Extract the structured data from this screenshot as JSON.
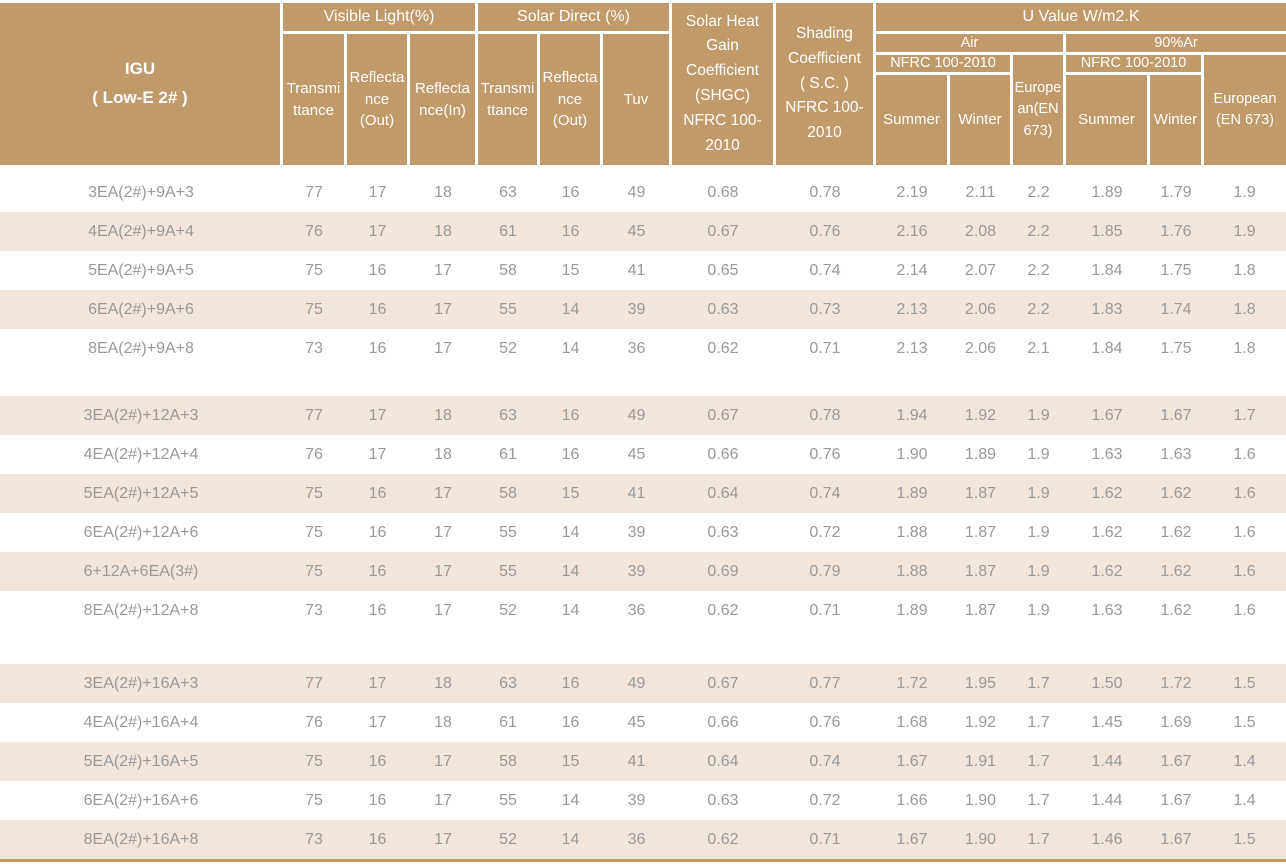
{
  "colors": {
    "header_bg": "#c19a6b",
    "shaded_row_bg": "#f2e5dc",
    "data_text": "#97999b",
    "header_text": "#ffffff",
    "bottom_border": "#c1996a"
  },
  "header": {
    "igu": "IGU\n( Low-E 2# )",
    "visible_light": "Visible Light(%)",
    "solar_direct": "Solar Direct (%)",
    "vl_transmittance": "Transmi\nttance",
    "vl_reflectance_out": "Reflecta\nnce\n(Out)",
    "vl_reflectance_in": "Reflecta\nnce(In)",
    "sd_transmittance": "Transmi\nttance",
    "sd_reflectance_out": "Reflecta\nnce\n(Out)",
    "tuv": "Tuv",
    "shgc": "Solar Heat\nGain\nCoefficient\n(SHGC)\nNFRC 100-\n2010",
    "shading_coefficient": "Shading\nCoefficient\n( S.C. )\nNFRC 100-\n2010",
    "u_value": "U Value W/m2.K",
    "air": "Air",
    "argon": "90%Ar",
    "nfrc_air": "NFRC 100-2010",
    "nfrc_ar": "NFRC 100-2010",
    "summer_air": "Summer",
    "winter_air": "Winter",
    "european_air": "Europe\nan(EN\n673)",
    "summer_ar": "Summer",
    "winter_ar": "Winter",
    "european_ar": "European\n(EN 673)"
  },
  "table": {
    "row_groups": [
      {
        "rows": [
          {
            "label": "3EA(2#)+9A+3",
            "values": [
              "77",
              "17",
              "18",
              "63",
              "16",
              "49",
              "0.68",
              "0.78",
              "2.19",
              "2.11",
              "2.2",
              "1.89",
              "1.79",
              "1.9"
            ]
          },
          {
            "label": "4EA(2#)+9A+4",
            "values": [
              "76",
              "17",
              "18",
              "61",
              "16",
              "45",
              "0.67",
              "0.76",
              "2.16",
              "2.08",
              "2.2",
              "1.85",
              "1.76",
              "1.9"
            ]
          },
          {
            "label": "5EA(2#)+9A+5",
            "values": [
              "75",
              "16",
              "17",
              "58",
              "15",
              "41",
              "0.65",
              "0.74",
              "2.14",
              "2.07",
              "2.2",
              "1.84",
              "1.75",
              "1.8"
            ]
          },
          {
            "label": "6EA(2#)+9A+6",
            "values": [
              "75",
              "16",
              "17",
              "55",
              "14",
              "39",
              "0.63",
              "0.73",
              "2.13",
              "2.06",
              "2.2",
              "1.83",
              "1.74",
              "1.8"
            ]
          },
          {
            "label": "8EA(2#)+9A+8",
            "values": [
              "73",
              "16",
              "17",
              "52",
              "14",
              "36",
              "0.62",
              "0.71",
              "2.13",
              "2.06",
              "2.1",
              "1.84",
              "1.75",
              "1.8"
            ]
          }
        ]
      },
      {
        "rows": [
          {
            "label": "3EA(2#)+12A+3",
            "values": [
              "77",
              "17",
              "18",
              "63",
              "16",
              "49",
              "0.67",
              "0.78",
              "1.94",
              "1.92",
              "1.9",
              "1.67",
              "1.67",
              "1.7"
            ]
          },
          {
            "label": "4EA(2#)+12A+4",
            "values": [
              "76",
              "17",
              "18",
              "61",
              "16",
              "45",
              "0.66",
              "0.76",
              "1.90",
              "1.89",
              "1.9",
              "1.63",
              "1.63",
              "1.6"
            ]
          },
          {
            "label": "5EA(2#)+12A+5",
            "values": [
              "75",
              "16",
              "17",
              "58",
              "15",
              "41",
              "0.64",
              "0.74",
              "1.89",
              "1.87",
              "1.9",
              "1.62",
              "1.62",
              "1.6"
            ]
          },
          {
            "label": "6EA(2#)+12A+6",
            "values": [
              "75",
              "16",
              "17",
              "55",
              "14",
              "39",
              "0.63",
              "0.72",
              "1.88",
              "1.87",
              "1.9",
              "1.62",
              "1.62",
              "1.6"
            ]
          },
          {
            "label": "6+12A+6EA(3#)",
            "values": [
              "75",
              "16",
              "17",
              "55",
              "14",
              "39",
              "0.69",
              "0.79",
              "1.88",
              "1.87",
              "1.9",
              "1.62",
              "1.62",
              "1.6"
            ]
          },
          {
            "label": "8EA(2#)+12A+8",
            "values": [
              "73",
              "16",
              "17",
              "52",
              "14",
              "36",
              "0.62",
              "0.71",
              "1.89",
              "1.87",
              "1.9",
              "1.63",
              "1.62",
              "1.6"
            ]
          }
        ]
      },
      {
        "rows": [
          {
            "label": "3EA(2#)+16A+3",
            "values": [
              "77",
              "17",
              "18",
              "63",
              "16",
              "49",
              "0.67",
              "0.77",
              "1.72",
              "1.95",
              "1.7",
              "1.50",
              "1.72",
              "1.5"
            ]
          },
          {
            "label": "4EA(2#)+16A+4",
            "values": [
              "76",
              "17",
              "18",
              "61",
              "16",
              "45",
              "0.66",
              "0.76",
              "1.68",
              "1.92",
              "1.7",
              "1.45",
              "1.69",
              "1.5"
            ]
          },
          {
            "label": "5EA(2#)+16A+5",
            "values": [
              "75",
              "16",
              "17",
              "58",
              "15",
              "41",
              "0.64",
              "0.74",
              "1.67",
              "1.91",
              "1.7",
              "1.44",
              "1.67",
              "1.4"
            ]
          },
          {
            "label": "6EA(2#)+16A+6",
            "values": [
              "75",
              "16",
              "17",
              "55",
              "14",
              "39",
              "0.63",
              "0.72",
              "1.66",
              "1.90",
              "1.7",
              "1.44",
              "1.67",
              "1.4"
            ]
          },
          {
            "label": "8EA(2#)+16A+8",
            "values": [
              "73",
              "16",
              "17",
              "52",
              "14",
              "36",
              "0.62",
              "0.71",
              "1.67",
              "1.90",
              "1.7",
              "1.46",
              "1.67",
              "1.5"
            ]
          }
        ]
      }
    ]
  }
}
